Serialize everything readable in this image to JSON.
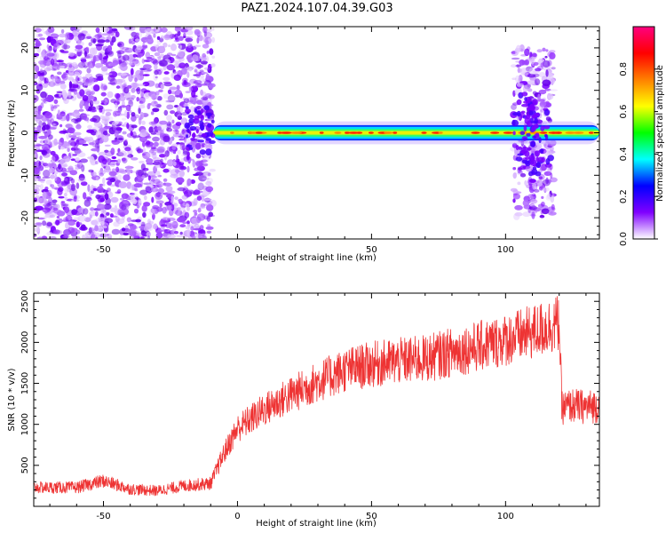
{
  "figure": {
    "title": "PAZ1.2024.107.04.39.G03"
  },
  "chart_data": [
    {
      "type": "heatmap",
      "xlabel": "Height of straight line (km)",
      "ylabel": "Frequency (Hz)",
      "xlim": [
        -76,
        135
      ],
      "ylim": [
        -25,
        25
      ],
      "xticks": [
        -50,
        0,
        50,
        100
      ],
      "yticks": [
        -20,
        -10,
        0,
        10,
        20
      ],
      "colorbar": {
        "label": "Normalized spectral amplitude",
        "range": [
          0,
          1
        ],
        "ticks": [
          0.0,
          0.2,
          0.4,
          0.6,
          0.8
        ],
        "colors": [
          "#ffffff",
          "#8000ff",
          "#0000ff",
          "#00ffff",
          "#00ff00",
          "#ffff00",
          "#ff8000",
          "#ff0000",
          "#ff0080"
        ]
      },
      "regions": [
        {
          "name": "scattered noise",
          "x_range": [
            -76,
            -9
          ],
          "freq_range": [
            -25,
            25
          ],
          "level": "low"
        },
        {
          "name": "carrier line",
          "x_range": [
            -9,
            135
          ],
          "freq_center": 0,
          "freq_halfwidth": 1.5,
          "level": "high"
        },
        {
          "name": "scattered noise",
          "x_range": [
            103,
            118
          ],
          "freq_range": [
            -20,
            20
          ],
          "level": "low"
        }
      ]
    },
    {
      "type": "line",
      "xlabel": "Height of straight line (km)",
      "ylabel": "SNR (10 * v/v)",
      "xlim": [
        -76,
        135
      ],
      "ylim": [
        0,
        2600
      ],
      "xticks": [
        -50,
        0,
        50,
        100
      ],
      "yticks": [
        500,
        1000,
        1500,
        2000,
        2500
      ],
      "color": "#ee3333",
      "x": [
        -76,
        -60,
        -50,
        -40,
        -30,
        -20,
        -10,
        -5,
        0,
        10,
        20,
        30,
        40,
        50,
        60,
        70,
        80,
        90,
        100,
        110,
        120,
        121,
        125,
        130,
        135
      ],
      "y": [
        230,
        230,
        310,
        210,
        190,
        250,
        280,
        650,
        950,
        1180,
        1360,
        1520,
        1660,
        1730,
        1770,
        1800,
        1880,
        1950,
        2030,
        2120,
        2240,
        1200,
        1230,
        1210,
        1230
      ]
    }
  ]
}
